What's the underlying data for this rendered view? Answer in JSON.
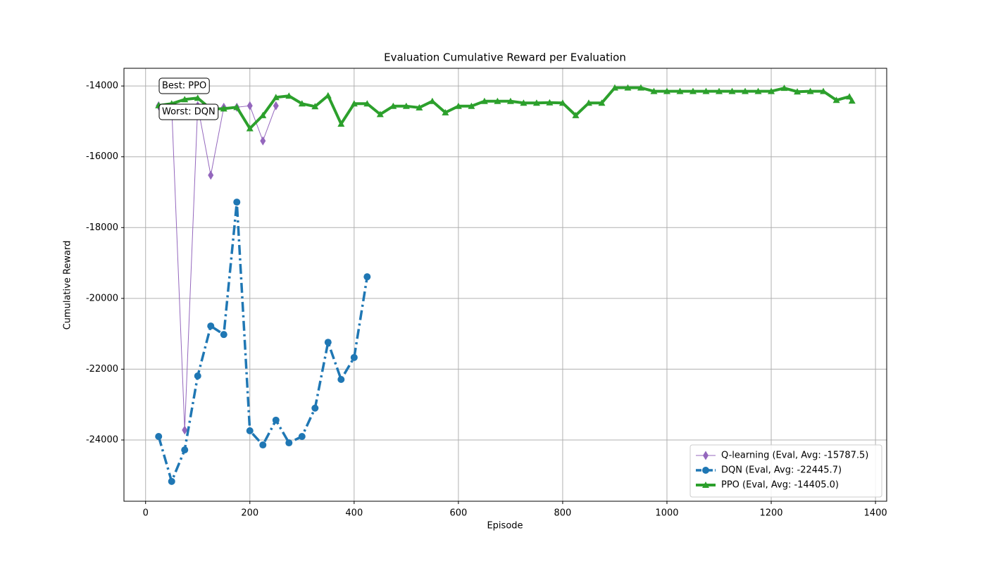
{
  "chart_data": {
    "type": "line",
    "title": "Evaluation Cumulative Reward per Evaluation",
    "x_label": "Episode",
    "y_label": "Cumulative Reward",
    "xlim": [
      -41.5,
      1421.5
    ],
    "ylim": [
      -25730,
      -13500
    ],
    "xticks": [
      0,
      200,
      400,
      600,
      800,
      1000,
      1200,
      1400
    ],
    "yticks": [
      -24000,
      -22000,
      -20000,
      -18000,
      -16000,
      -14000
    ],
    "grid": true,
    "legend": "lower right",
    "annotations": [
      "Best: PPO",
      "Worst: DQN"
    ],
    "series": [
      {
        "name": "Q-learning (Eval, Avg: -15787.5)",
        "color": "#9467bd",
        "marker": "diamond",
        "style": "solid",
        "width": 1,
        "x": [
          25,
          50,
          75,
          100,
          125,
          150,
          175,
          200,
          225,
          250
        ],
        "values": [
          -14560,
          -14560,
          -23720,
          -14560,
          -16520,
          -14600,
          -14600,
          -14560,
          -15550,
          -14560
        ]
      },
      {
        "name": "DQN (Eval, Avg: -22445.7)",
        "color": "#1f77b4",
        "marker": "circle",
        "style": "dashdot",
        "width": 3.5,
        "x": [
          25,
          50,
          75,
          100,
          125,
          150,
          175,
          200,
          225,
          250,
          275,
          300,
          325,
          350,
          375,
          400,
          425
        ],
        "values": [
          -23900,
          -25170,
          -24280,
          -22190,
          -20780,
          -21020,
          -17280,
          -23740,
          -24140,
          -23440,
          -24080,
          -23900,
          -23100,
          -21240,
          -22290,
          -21670,
          -19390
        ]
      },
      {
        "name": "PPO (Eval, Avg: -14405.0)",
        "color": "#2ca02c",
        "marker": "triangle",
        "style": "solid",
        "width": 4,
        "x": [
          25,
          50,
          75,
          100,
          125,
          150,
          175,
          200,
          225,
          250,
          275,
          300,
          325,
          350,
          375,
          400,
          425,
          450,
          475,
          500,
          525,
          550,
          575,
          600,
          625,
          650,
          675,
          700,
          725,
          750,
          775,
          800,
          825,
          850,
          875,
          900,
          925,
          950,
          975,
          1000,
          1025,
          1050,
          1075,
          1100,
          1125,
          1150,
          1175,
          1200,
          1225,
          1250,
          1275,
          1300,
          1325,
          1350,
          1355
        ],
        "values": [
          -14550,
          -14500,
          -14380,
          -14340,
          -14650,
          -14640,
          -14600,
          -15200,
          -14830,
          -14320,
          -14280,
          -14500,
          -14580,
          -14270,
          -15070,
          -14500,
          -14500,
          -14800,
          -14570,
          -14570,
          -14610,
          -14430,
          -14750,
          -14570,
          -14570,
          -14430,
          -14430,
          -14430,
          -14480,
          -14480,
          -14470,
          -14480,
          -14830,
          -14480,
          -14480,
          -14050,
          -14050,
          -14050,
          -14150,
          -14150,
          -14150,
          -14150,
          -14150,
          -14150,
          -14150,
          -14150,
          -14150,
          -14150,
          -14060,
          -14160,
          -14150,
          -14150,
          -14400,
          -14300,
          -14420
        ]
      }
    ]
  }
}
